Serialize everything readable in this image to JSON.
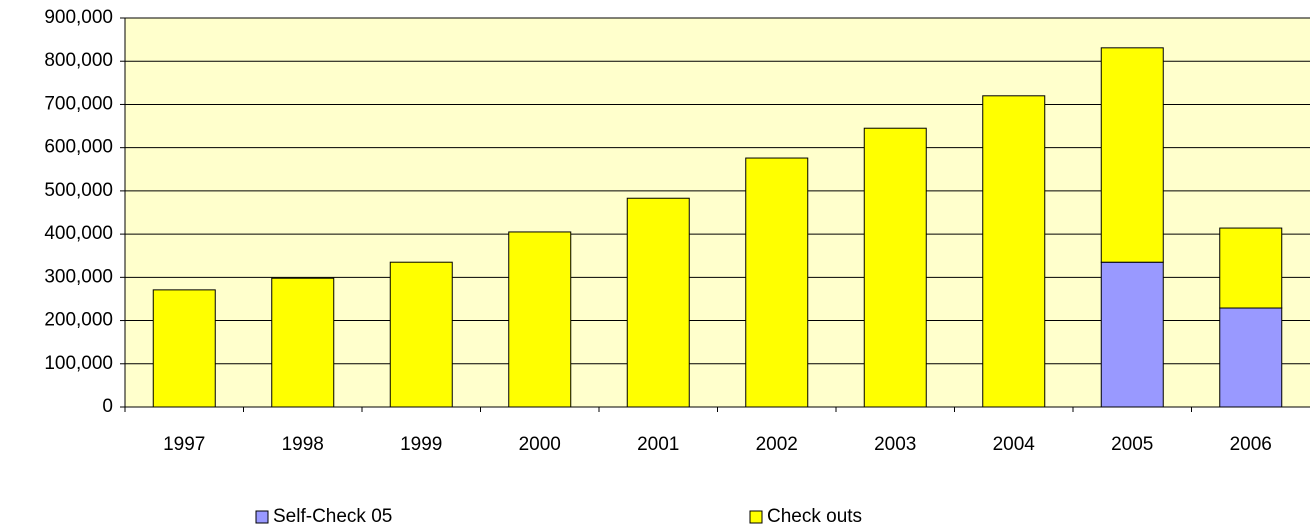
{
  "chart_data": {
    "type": "stacked_bar",
    "categories": [
      "1997",
      "1998",
      "1999",
      "2000",
      "2001",
      "2002",
      "2003",
      "2004",
      "2005",
      "2006"
    ],
    "series": [
      {
        "name": "Self-Check 05",
        "color": "#9999ff",
        "values": [
          null,
          null,
          null,
          null,
          null,
          null,
          null,
          null,
          335000,
          229000
        ]
      },
      {
        "name": "Check outs",
        "color": "#ffff00",
        "values": [
          271000,
          298000,
          335000,
          405000,
          483000,
          576000,
          645000,
          720000,
          496000,
          185000
        ]
      }
    ],
    "ylim": [
      0,
      900000
    ],
    "yticks": [
      0,
      {
        "value": 100000,
        "label": "100,000"
      },
      {
        "value": 200000,
        "label": "200,000"
      },
      {
        "value": 300000,
        "label": "300,000"
      },
      {
        "value": 400000,
        "label": "400,000"
      },
      {
        "value": 500000,
        "label": "500,000"
      },
      {
        "value": 600000,
        "label": "600,000"
      },
      {
        "value": 700000,
        "label": "700,000"
      },
      {
        "value": 800000,
        "label": "800,000"
      },
      {
        "value": 900000,
        "label": "900,000"
      }
    ],
    "grid": true,
    "legend": "bottom"
  }
}
